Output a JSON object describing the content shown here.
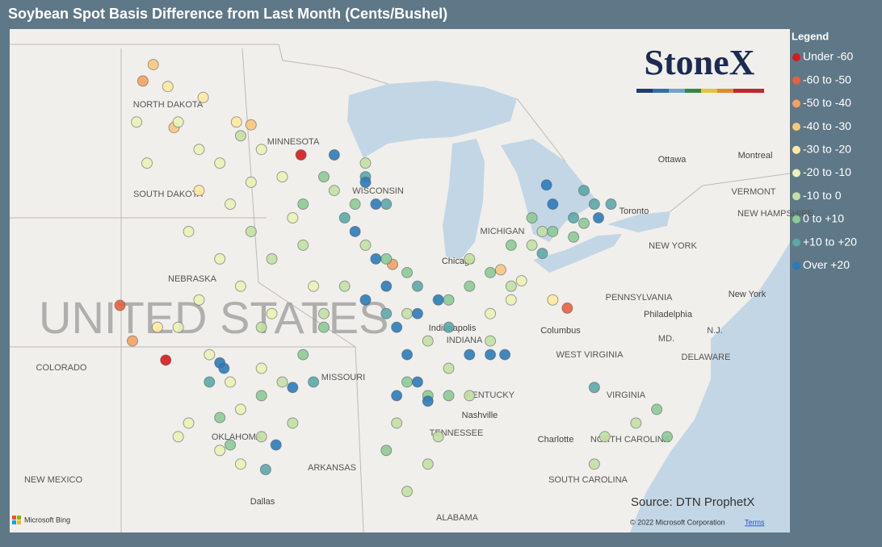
{
  "chart_data": {
    "type": "scatter",
    "title": "Soybean Spot Basis Difference from Last Month (Cents/Bushel)",
    "legend_title": "Legend",
    "xlim": [
      -108.1,
      -70.6
    ],
    "ylim": [
      32.0,
      50.4
    ],
    "series": [
      {
        "name": "Under -60",
        "color": "#d7191c",
        "x": [
          -94.1,
          -100.6
        ],
        "y": [
          45.8,
          38.3
        ]
      },
      {
        "name": "-60 to -50",
        "color": "#e8603c",
        "x": [
          -102.8,
          -81.3
        ],
        "y": [
          40.3,
          40.2
        ]
      },
      {
        "name": "-50 to -40",
        "color": "#f4a261",
        "x": [
          -101.7,
          -102.2,
          -89.7
        ],
        "y": [
          48.5,
          39.0,
          41.8
        ]
      },
      {
        "name": "-40 to -30",
        "color": "#f9c77e",
        "x": [
          -100.2,
          -101.2,
          -96.5,
          -84.5
        ],
        "y": [
          46.8,
          49.1,
          46.9,
          41.6
        ]
      },
      {
        "name": "-30 to -20",
        "color": "#fde9a0",
        "x": [
          -100.5,
          -98.8,
          -97.2,
          -101.0,
          -99.0,
          -82.0
        ],
        "y": [
          48.3,
          47.9,
          47.0,
          39.5,
          44.5,
          40.5
        ]
      },
      {
        "name": "-20 to -10",
        "color": "#eaf2b5",
        "x": [
          -100,
          -99,
          -98,
          -97.5,
          -99.5,
          -98,
          -97,
          -99,
          -100,
          -98.5,
          -97.5,
          -99.5,
          -100,
          -97,
          -96,
          -95.5,
          -96.5,
          -96,
          -95,
          -94.5,
          -93.5,
          -84,
          -83.5,
          -85,
          -101.5,
          -102,
          -98,
          -97
        ],
        "y": [
          47,
          46,
          45.5,
          44,
          43,
          42,
          41,
          40.5,
          39.5,
          38.5,
          37.5,
          36,
          35.5,
          36.5,
          38,
          40,
          44.8,
          46,
          45,
          43.5,
          41,
          40.5,
          41.2,
          40,
          45.5,
          47,
          35,
          34.5
        ]
      },
      {
        "name": "-10 to 0",
        "color": "#c2e0a3",
        "x": [
          -97,
          -96.5,
          -95.5,
          -94,
          -93,
          -92,
          -91,
          -96,
          -95,
          -94.5,
          -96,
          -89,
          -88,
          -87,
          -86,
          -85,
          -84,
          -83,
          -82.5,
          -86,
          -87.5,
          -88,
          -89,
          -89.5,
          -92.5,
          -91,
          -79.5,
          -78,
          -80
        ],
        "y": [
          46.5,
          43,
          42,
          42.5,
          40,
          41,
          42.5,
          39.5,
          37.5,
          36,
          35.5,
          40,
          39,
          38,
          37,
          39,
          41,
          42.5,
          43,
          42,
          35.5,
          34.5,
          33.5,
          36,
          44.5,
          45.5,
          35.5,
          36,
          34.5
        ]
      },
      {
        "name": "0 to +10",
        "color": "#8ccb95",
        "x": [
          -94,
          -93,
          -91.5,
          -90,
          -89,
          -87,
          -86,
          -85,
          -84,
          -83,
          -82,
          -80.5,
          -81,
          -96,
          -98,
          -97.5,
          -88,
          -87,
          -89,
          -90,
          -94,
          -93,
          -76.5,
          -77
        ],
        "y": [
          44,
          45,
          44,
          42,
          41.5,
          40.5,
          41,
          41.5,
          42.5,
          43.5,
          43,
          43.3,
          42.8,
          37,
          36.2,
          35.2,
          37,
          37,
          37.5,
          35,
          38.5,
          39.5,
          35.5,
          36.5
        ]
      },
      {
        "name": "+10 to +20",
        "color": "#5ba8a8",
        "x": [
          -91,
          -90,
          -92,
          -88.5,
          -90,
          -87,
          -81,
          -80,
          -82.5,
          -98.5,
          -95.8,
          -93.5,
          -80,
          -79.2,
          -80.5
        ],
        "y": [
          45,
          44,
          43.5,
          41,
          40,
          39.5,
          43.5,
          44,
          42.2,
          37.5,
          34.3,
          37.5,
          37.3,
          44,
          44.5
        ]
      },
      {
        "name": "Over +20",
        "color": "#2b7bba",
        "x": [
          -92.5,
          -91,
          -90.5,
          -91.5,
          -90.5,
          -90,
          -88.5,
          -89.5,
          -89,
          -88.5,
          -89.5,
          -88,
          -86,
          -85,
          -84.3,
          -82.3,
          -82,
          -79.8,
          -98,
          -97.8,
          -95.3,
          -94.5,
          -87.5,
          -91
        ],
        "y": [
          45.8,
          44.8,
          44,
          43,
          42,
          41,
          40,
          39.5,
          38.5,
          37.5,
          37,
          36.8,
          38.5,
          38.5,
          38.5,
          44.7,
          44,
          43.5,
          38.2,
          38.0,
          35.2,
          37.3,
          40.5,
          40.5
        ]
      }
    ]
  },
  "map": {
    "labels": [
      "NORTH DAKOTA",
      "MINNESOTA",
      "SOUTH DAKOTA",
      "WISCONSIN",
      "MICHIGAN",
      "Chicago",
      "NEBRASKA",
      "COLORADO",
      "MISSOURI",
      "INDIANA",
      "Indianapolis",
      "Columbus",
      "KENTUCKY",
      "Nashville",
      "TENNESSEE",
      "WEST VIRGINIA",
      "VIRGINIA",
      "Charlotte",
      "NORTH CAROLINA",
      "SOUTH CAROLINA",
      "OKLAHOMA",
      "ARKANSAS",
      "NEW MEXICO",
      "Dallas",
      "ALABAMA",
      "NEW YORK",
      "New York",
      "PENNSYLVANIA",
      "Philadelphia",
      "N.J.",
      "MD.",
      "DELAWARE",
      "Toronto",
      "Ottawa",
      "Montreal",
      "VERMONT",
      "NEW HAMPSHIRE"
    ],
    "country": "UNITED STATES",
    "logo": "StoneX",
    "source": "Source: DTN ProphetX",
    "copyright": "© 2022 Microsoft Corporation",
    "terms": "Terms",
    "provider": "Microsoft Bing"
  }
}
